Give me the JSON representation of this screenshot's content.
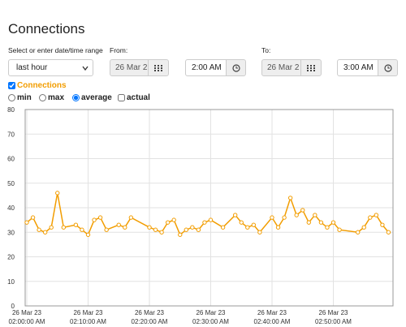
{
  "header": {
    "title": "Connections"
  },
  "range": {
    "label": "Select or enter date/time range",
    "selected": "last hour",
    "from": {
      "label": "From:",
      "date": "26 Mar 2",
      "time": "2:00 AM"
    },
    "to": {
      "label": "To:",
      "date": "26 Mar 2",
      "time": "3:00 AM"
    }
  },
  "toggle": {
    "label": "Connections",
    "checked": true
  },
  "options": [
    {
      "label": "min",
      "checked": false
    },
    {
      "label": "max",
      "checked": false
    },
    {
      "label": "average",
      "checked": true
    },
    {
      "label": "actual",
      "checked": false
    }
  ],
  "chart_data": {
    "type": "line",
    "grid": true,
    "ylim": [
      0,
      80
    ],
    "yticks": [
      0,
      10,
      20,
      30,
      40,
      50,
      60,
      70,
      80
    ],
    "xlim": [
      "2023-03-26T02:00:00",
      "2023-03-26T03:00:00"
    ],
    "xticks": [
      {
        "value": "2023-03-26T02:00:00",
        "label": [
          "26 Mar 23",
          "02:00:00 AM"
        ]
      },
      {
        "value": "2023-03-26T02:10:00",
        "label": [
          "26 Mar 23",
          "02:10:00 AM"
        ]
      },
      {
        "value": "2023-03-26T02:20:00",
        "label": [
          "26 Mar 23",
          "02:20:00 AM"
        ]
      },
      {
        "value": "2023-03-26T02:30:00",
        "label": [
          "26 Mar 23",
          "02:30:00 AM"
        ]
      },
      {
        "value": "2023-03-26T02:40:00",
        "label": [
          "26 Mar 23",
          "02:40:00 AM"
        ]
      },
      {
        "value": "2023-03-26T02:50:00",
        "label": [
          "26 Mar 23",
          "02:50:00 AM"
        ]
      }
    ],
    "x": [
      "2023-03-26T02:00:00",
      "2023-03-26T02:01:00",
      "2023-03-26T02:02:00",
      "2023-03-26T02:03:00",
      "2023-03-26T02:04:00",
      "2023-03-26T02:05:00",
      "2023-03-26T02:06:00",
      "2023-03-26T02:08:00",
      "2023-03-26T02:09:00",
      "2023-03-26T02:10:00",
      "2023-03-26T02:11:00",
      "2023-03-26T02:12:00",
      "2023-03-26T02:13:00",
      "2023-03-26T02:15:00",
      "2023-03-26T02:16:00",
      "2023-03-26T02:17:00",
      "2023-03-26T02:20:00",
      "2023-03-26T02:21:00",
      "2023-03-26T02:22:00",
      "2023-03-26T02:23:00",
      "2023-03-26T02:24:00",
      "2023-03-26T02:25:00",
      "2023-03-26T02:26:00",
      "2023-03-26T02:27:00",
      "2023-03-26T02:28:00",
      "2023-03-26T02:29:00",
      "2023-03-26T02:30:00",
      "2023-03-26T02:32:00",
      "2023-03-26T02:34:00",
      "2023-03-26T02:35:00",
      "2023-03-26T02:36:00",
      "2023-03-26T02:37:00",
      "2023-03-26T02:38:00",
      "2023-03-26T02:40:00",
      "2023-03-26T02:41:00",
      "2023-03-26T02:42:00",
      "2023-03-26T02:43:00",
      "2023-03-26T02:44:00",
      "2023-03-26T02:45:00",
      "2023-03-26T02:46:00",
      "2023-03-26T02:47:00",
      "2023-03-26T02:48:00",
      "2023-03-26T02:49:00",
      "2023-03-26T02:50:00",
      "2023-03-26T02:51:00",
      "2023-03-26T02:54:00",
      "2023-03-26T02:55:00",
      "2023-03-26T02:56:00",
      "2023-03-26T02:57:00",
      "2023-03-26T02:58:00",
      "2023-03-26T02:59:00"
    ],
    "series": [
      {
        "color": "#f29d00",
        "values": [
          34,
          36,
          31,
          30,
          32,
          46,
          32,
          33,
          31,
          29,
          35,
          36,
          31,
          33,
          32,
          36,
          32,
          31,
          30,
          34,
          35,
          29,
          31,
          32,
          31,
          34,
          35,
          32,
          37,
          34,
          32,
          33,
          30,
          36,
          32,
          36,
          44,
          37,
          39,
          34,
          37,
          34,
          32,
          34,
          31,
          30,
          32,
          36,
          37,
          33,
          30
        ]
      }
    ]
  }
}
